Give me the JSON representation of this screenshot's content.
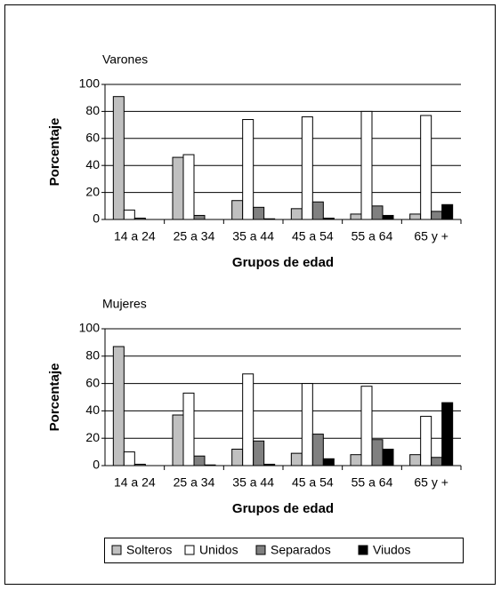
{
  "chart_data": [
    {
      "type": "bar",
      "title": "Varones",
      "x_label": "Grupos de edad",
      "y_label": "Porcentaje",
      "categories": [
        "14 a 24",
        "25 a 34",
        "35 a 44",
        "45 a 54",
        "55 a 64",
        "65 y +"
      ],
      "series": [
        {
          "name": "Solteros",
          "color": "#c0c0c0",
          "values": [
            91,
            46,
            14,
            8,
            4,
            4
          ]
        },
        {
          "name": "Unidos",
          "color": "#ffffff",
          "values": [
            7,
            48,
            74,
            76,
            80,
            77
          ]
        },
        {
          "name": "Separados",
          "color": "#808080",
          "values": [
            1,
            3,
            9,
            13,
            10,
            6
          ]
        },
        {
          "name": "Viudos",
          "color": "#000000",
          "values": [
            0,
            0,
            0.5,
            1,
            3,
            11
          ]
        }
      ],
      "ylim": [
        0,
        100
      ],
      "yticks": [
        0,
        20,
        40,
        60,
        80,
        100
      ],
      "grid": true
    },
    {
      "type": "bar",
      "title": "Mujeres",
      "x_label": "Grupos de edad",
      "y_label": "Porcentaje",
      "categories": [
        "14 a 24",
        "25 a 34",
        "35 a 44",
        "45 a 54",
        "55 a 64",
        "65 y +"
      ],
      "series": [
        {
          "color": "#c0c0c0",
          "values": [
            87,
            37,
            12,
            9,
            8,
            8
          ]
        },
        {
          "color": "#ffffff",
          "values": [
            10,
            53,
            67,
            60,
            58,
            36
          ]
        },
        {
          "color": "#808080",
          "values": [
            1,
            7,
            18,
            23,
            19,
            6
          ]
        },
        {
          "color": "#000000",
          "values": [
            0,
            0.5,
            1,
            5,
            12,
            46
          ]
        }
      ],
      "ylim": [
        0,
        100
      ],
      "yticks": [
        0,
        20,
        40,
        60,
        80,
        100
      ],
      "grid": true
    }
  ]
}
